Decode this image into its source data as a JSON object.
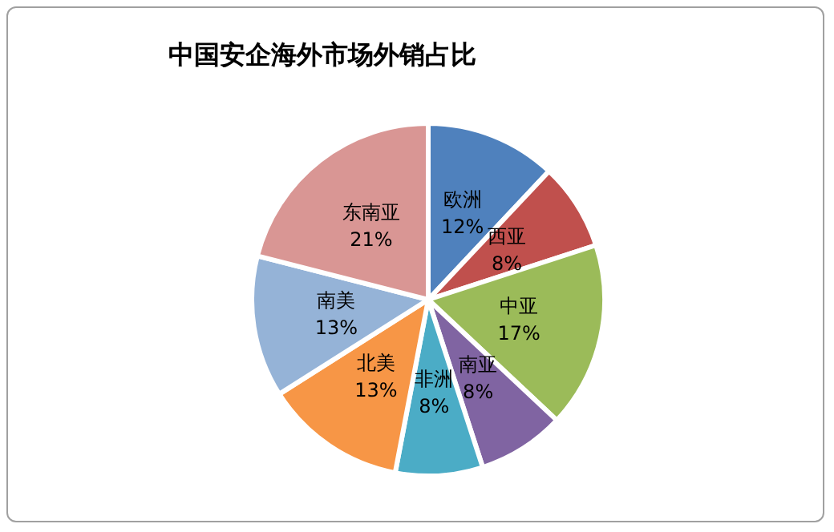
{
  "chart_data": {
    "type": "pie",
    "title": "中国安企海外市场外销占比",
    "categories": [
      "欧洲",
      "西亚",
      "中亚",
      "南亚",
      "非洲",
      "北美",
      "南美",
      "东南亚"
    ],
    "values": [
      12,
      8,
      17,
      8,
      8,
      13,
      13,
      21
    ],
    "value_labels": [
      "12%",
      "8%",
      "17%",
      "8%",
      "8%",
      "13%",
      "13%",
      "21%"
    ],
    "colors": [
      "#4f81bd",
      "#c0504d",
      "#9bbb59",
      "#8064a2",
      "#4bacc6",
      "#f79646",
      "#95b3d7",
      "#d99694"
    ],
    "legend": false
  }
}
